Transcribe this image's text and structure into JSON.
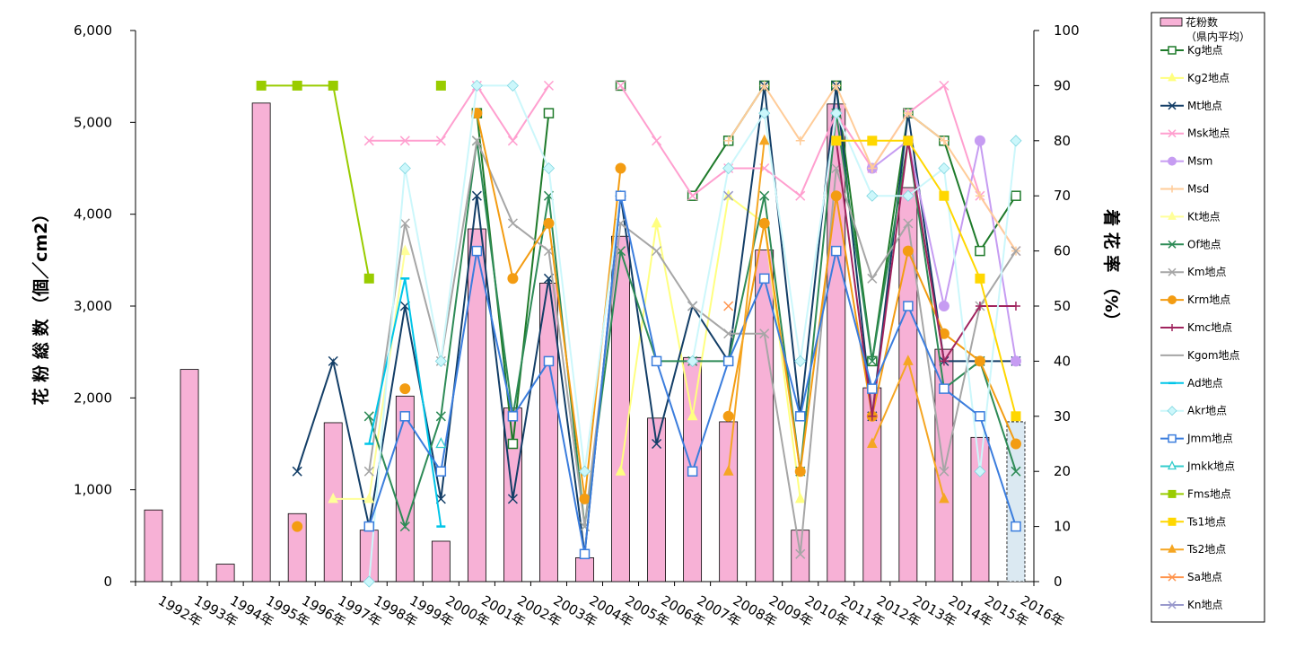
{
  "chart_data": {
    "type": "bar+line",
    "categories": [
      "1992年",
      "1993年",
      "1994年",
      "1995年",
      "1996年",
      "1997年",
      "1998年",
      "1999年",
      "2000年",
      "2001年",
      "2002年",
      "2003年",
      "2004年",
      "2005年",
      "2006年",
      "2007年",
      "2008年",
      "2009年",
      "2010年",
      "2011年",
      "2012年",
      "2013年",
      "2014年",
      "2015年",
      "2016年"
    ],
    "ylabel_left": "花 粉 総 数 （個／cm2）",
    "ylabel_right": "着 花 率 （%）",
    "left_axis": {
      "min": 0,
      "max": 6000,
      "ticks": [
        "0",
        "1,000",
        "2,000",
        "3,000",
        "4,000",
        "5,000",
        "6,000"
      ]
    },
    "right_axis": {
      "min": 0,
      "max": 100,
      "ticks": [
        "0",
        "10",
        "20",
        "30",
        "40",
        "50",
        "60",
        "70",
        "80",
        "90",
        "100"
      ]
    },
    "bar_series": {
      "name": "花粉数",
      "name_sub": "（県内平均）",
      "color": "#f7b1d6",
      "values": [
        780,
        2310,
        190,
        5210,
        740,
        1730,
        560,
        2020,
        440,
        3840,
        1890,
        3250,
        260,
        3760,
        1780,
        2440,
        1740,
        3610,
        560,
        5200,
        2110,
        4290,
        2530,
        1570,
        1740
      ],
      "projected_last": true,
      "projected_color": "#dbe9f2"
    },
    "line_series": [
      {
        "name": "Kg地点",
        "color": "#1e7a2a",
        "marker": "square-open",
        "values": [
          null,
          null,
          null,
          null,
          null,
          null,
          null,
          null,
          null,
          85,
          25,
          85,
          null,
          90,
          null,
          70,
          80,
          90,
          null,
          90,
          40,
          85,
          80,
          60,
          70
        ]
      },
      {
        "name": "Kg2地点",
        "color": "#ffff80",
        "marker": "triangle",
        "values": [
          null,
          null,
          null,
          null,
          null,
          null,
          null,
          null,
          null,
          null,
          null,
          null,
          null,
          20,
          65,
          30,
          70,
          65,
          15,
          null,
          null,
          null,
          null,
          null,
          null
        ]
      },
      {
        "name": "Mt地点",
        "color": "#133e67",
        "marker": "x",
        "values": [
          null,
          null,
          null,
          null,
          20,
          40,
          10,
          50,
          15,
          70,
          15,
          55,
          5,
          70,
          25,
          50,
          40,
          90,
          30,
          90,
          30,
          85,
          40,
          40,
          40
        ]
      },
      {
        "name": "Msk地点",
        "color": "#ff9fcf",
        "marker": "x",
        "values": [
          null,
          null,
          null,
          null,
          null,
          null,
          80,
          80,
          80,
          90,
          80,
          90,
          null,
          90,
          80,
          70,
          75,
          75,
          70,
          85,
          75,
          85,
          90,
          70,
          60
        ]
      },
      {
        "name": "Msm",
        "color": "#c69cf2",
        "marker": "circle",
        "values": [
          null,
          null,
          null,
          null,
          null,
          null,
          null,
          null,
          null,
          null,
          null,
          null,
          null,
          null,
          null,
          null,
          null,
          null,
          null,
          null,
          75,
          80,
          50,
          80,
          40
        ]
      },
      {
        "name": "Msd",
        "color": "#ffcc99",
        "marker": "plus",
        "values": [
          null,
          null,
          null,
          null,
          null,
          null,
          null,
          null,
          null,
          null,
          null,
          null,
          null,
          null,
          null,
          null,
          80,
          90,
          80,
          90,
          75,
          85,
          80,
          70,
          60
        ]
      },
      {
        "name": "Kt地点",
        "color": "#ffff99",
        "marker": "triangle",
        "values": [
          null,
          null,
          null,
          null,
          null,
          15,
          15,
          60,
          null,
          null,
          null,
          null,
          null,
          null,
          null,
          null,
          null,
          null,
          null,
          null,
          null,
          null,
          null,
          null,
          null
        ]
      },
      {
        "name": "Of地点",
        "color": "#2e8b57",
        "marker": "x",
        "values": [
          null,
          null,
          null,
          null,
          null,
          null,
          30,
          10,
          30,
          80,
          30,
          70,
          10,
          60,
          40,
          40,
          40,
          70,
          20,
          85,
          40,
          80,
          35,
          40,
          20
        ]
      },
      {
        "name": "Km地点",
        "color": "#a6a6a6",
        "marker": "x",
        "values": [
          null,
          null,
          null,
          null,
          null,
          null,
          20,
          65,
          40,
          80,
          65,
          60,
          10,
          65,
          60,
          50,
          45,
          45,
          5,
          75,
          55,
          65,
          20,
          50,
          60
        ]
      },
      {
        "name": "Krm地点",
        "color": "#f39c12",
        "marker": "circle",
        "values": [
          null,
          null,
          null,
          null,
          10,
          null,
          null,
          35,
          null,
          85,
          55,
          65,
          15,
          75,
          null,
          null,
          30,
          65,
          20,
          70,
          30,
          60,
          45,
          40,
          25
        ]
      },
      {
        "name": "Kmc地点",
        "color": "#a0245e",
        "marker": "plus",
        "values": [
          null,
          null,
          null,
          null,
          null,
          null,
          null,
          null,
          null,
          null,
          null,
          null,
          null,
          null,
          null,
          null,
          null,
          null,
          null,
          80,
          30,
          80,
          40,
          50,
          50
        ]
      },
      {
        "name": "Kgom地点",
        "color": "#a6a6a6",
        "marker": "none",
        "values": [
          null,
          null,
          null,
          null,
          null,
          null,
          null,
          null,
          null,
          null,
          null,
          null,
          null,
          null,
          null,
          null,
          null,
          null,
          null,
          null,
          null,
          null,
          null,
          null,
          null
        ]
      },
      {
        "name": "Ad地点",
        "color": "#00c5e8",
        "marker": "dash",
        "values": [
          null,
          null,
          null,
          null,
          null,
          null,
          25,
          55,
          10,
          null,
          null,
          null,
          null,
          null,
          null,
          null,
          null,
          null,
          null,
          null,
          null,
          null,
          null,
          null,
          null
        ]
      },
      {
        "name": "Akr地点",
        "color": "#ccf7fb",
        "marker": "diamond",
        "values": [
          null,
          null,
          null,
          null,
          null,
          null,
          0,
          75,
          40,
          90,
          90,
          75,
          20,
          70,
          null,
          40,
          75,
          85,
          40,
          85,
          70,
          70,
          75,
          20,
          80
        ]
      },
      {
        "name": "Jmm地点",
        "color": "#3b7ddd",
        "marker": "square-open",
        "values": [
          null,
          null,
          null,
          null,
          null,
          null,
          10,
          30,
          20,
          60,
          30,
          40,
          5,
          70,
          40,
          20,
          40,
          55,
          30,
          60,
          35,
          50,
          35,
          30,
          10
        ]
      },
      {
        "name": "Jmkk地点",
        "color": "#33cccc",
        "marker": "triangle-open",
        "values": [
          null,
          null,
          null,
          null,
          null,
          null,
          null,
          null,
          25,
          null,
          null,
          null,
          null,
          null,
          null,
          null,
          null,
          null,
          null,
          null,
          null,
          null,
          null,
          null,
          null
        ]
      },
      {
        "name": "Fms地点",
        "color": "#99cc00",
        "marker": "square",
        "values": [
          null,
          null,
          null,
          90,
          90,
          90,
          55,
          null,
          90,
          null,
          null,
          null,
          null,
          null,
          null,
          null,
          null,
          null,
          null,
          null,
          null,
          null,
          null,
          null,
          null
        ]
      },
      {
        "name": "Ts1地点",
        "color": "#ffd700",
        "marker": "square",
        "values": [
          null,
          null,
          null,
          null,
          null,
          null,
          null,
          null,
          null,
          null,
          null,
          null,
          null,
          null,
          null,
          null,
          null,
          null,
          null,
          80,
          80,
          80,
          70,
          55,
          30
        ]
      },
      {
        "name": "Ts2地点",
        "color": "#f5a623",
        "marker": "triangle",
        "values": [
          null,
          null,
          null,
          null,
          null,
          null,
          null,
          null,
          null,
          null,
          null,
          null,
          null,
          null,
          null,
          null,
          20,
          80,
          null,
          null,
          25,
          40,
          15,
          null,
          null
        ]
      },
      {
        "name": "Sa地点",
        "color": "#ff944d",
        "marker": "x",
        "values": [
          null,
          null,
          null,
          null,
          null,
          null,
          null,
          null,
          null,
          null,
          null,
          null,
          null,
          null,
          null,
          null,
          50,
          null,
          null,
          null,
          null,
          null,
          null,
          null,
          null
        ]
      },
      {
        "name": "Kn地点",
        "color": "#9999cc",
        "marker": "x",
        "values": [
          null,
          null,
          null,
          null,
          null,
          null,
          null,
          null,
          null,
          null,
          null,
          null,
          null,
          null,
          null,
          null,
          70,
          null,
          null,
          null,
          null,
          null,
          null,
          null,
          null
        ]
      }
    ],
    "legend_position": "right"
  }
}
